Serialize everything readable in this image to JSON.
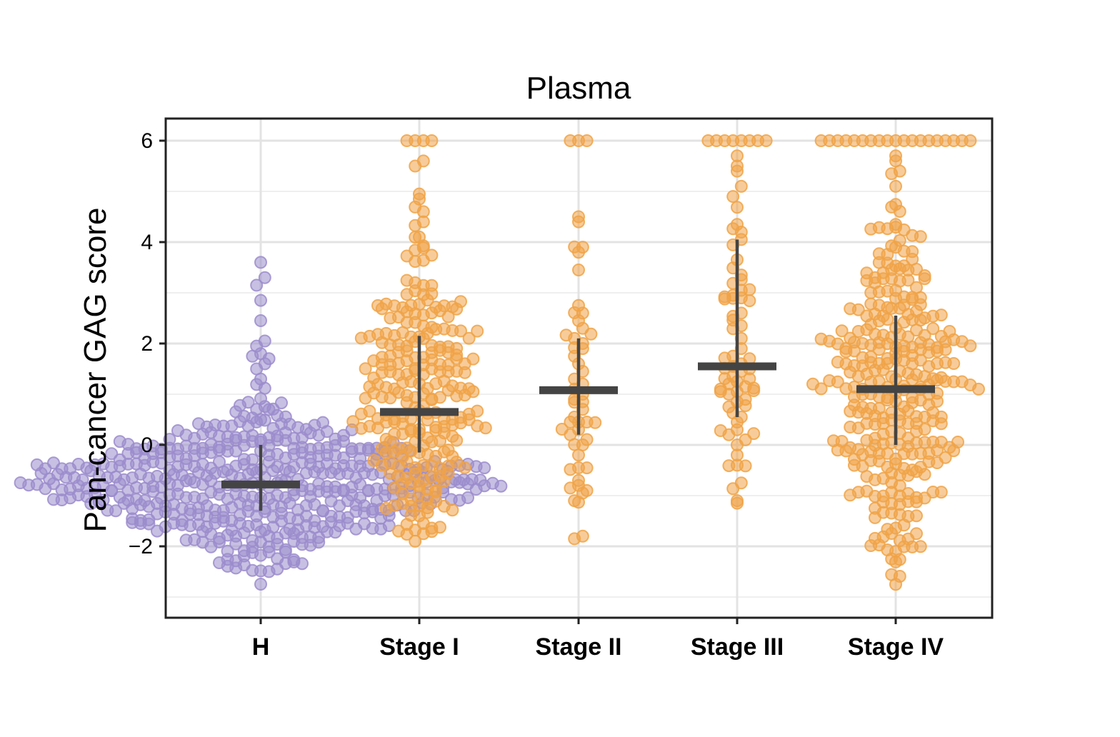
{
  "chart_data": {
    "type": "scatter",
    "subtype": "beeswarm",
    "title": "Plasma",
    "xlabel": "",
    "ylabel": "Pan-cancer GAG score",
    "ylim": [
      -3.4,
      6.5
    ],
    "yticks": [
      -2,
      0,
      2,
      4,
      6
    ],
    "ytick_labels": [
      "−2",
      "0",
      "2",
      "4",
      "6"
    ],
    "categories": [
      "H",
      "Stage I",
      "Stage II",
      "Stage III",
      "Stage IV"
    ],
    "colors": {
      "H": "#9b8ccc",
      "Stage": "#f0a347",
      "stat": "#444444"
    },
    "groups": [
      {
        "name": "H",
        "color": "#9b8ccc",
        "n": 520,
        "summary": {
          "median": -0.78,
          "lower": -1.3,
          "upper": 0.0,
          "min": -2.95,
          "max": 3.6
        },
        "values": [
          3.6,
          3.3,
          3.15,
          2.85,
          2.45,
          2.05,
          1.95,
          1.8,
          1.75,
          1.7,
          1.6,
          1.5,
          1.3
        ]
      },
      {
        "name": "Stage I",
        "color": "#f0a347",
        "n": 260,
        "summary": {
          "median": 0.65,
          "lower": -0.15,
          "upper": 2.15,
          "min": -1.9,
          "max": 6.0
        },
        "values": [
          6.0,
          6.0,
          6.0,
          6.0,
          5.6,
          5.5,
          4.95,
          4.85,
          4.6,
          4.4,
          -1.75,
          -1.9
        ]
      },
      {
        "name": "Stage II",
        "color": "#f0a347",
        "n": 55,
        "summary": {
          "median": 1.08,
          "lower": 0.2,
          "upper": 2.1,
          "min": -1.85,
          "max": 6.0
        },
        "values": [
          6.0,
          6.0,
          6.0,
          4.5,
          4.4,
          3.9,
          3.8,
          3.45,
          2.75,
          2.6,
          2.45,
          2.3,
          2.1,
          2.0,
          1.9,
          1.75,
          1.6,
          1.45,
          1.3,
          1.2,
          1.1,
          1.0,
          0.9,
          0.85,
          0.7,
          0.55,
          0.45,
          0.45,
          0.45,
          0.3,
          0.2,
          0.0,
          -0.2,
          -0.45,
          -0.7,
          -0.8,
          -0.85,
          -0.9,
          -0.95,
          -1.1,
          -1.8,
          -1.85
        ]
      },
      {
        "name": "Stage III",
        "color": "#f0a347",
        "n": 80,
        "summary": {
          "median": 1.55,
          "lower": 0.55,
          "upper": 4.05,
          "min": -1.15,
          "max": 6.0
        },
        "values": [
          6.0,
          6.0,
          6.0,
          6.0,
          6.0,
          6.0,
          6.0,
          6.0,
          5.7,
          5.5,
          5.4,
          5.1,
          4.9,
          4.35,
          4.05,
          3.35,
          3.05,
          2.95,
          2.9,
          2.6,
          2.35,
          2.1,
          1.9,
          1.75,
          1.7,
          1.6,
          1.55,
          1.5,
          1.45,
          1.35,
          1.25,
          1.2,
          1.15,
          1.1,
          1.05,
          1.0,
          0.9,
          0.85,
          0.75,
          0.55,
          0.45,
          0.3,
          0.2,
          0.1,
          0.0,
          -0.2,
          -0.4,
          -0.75,
          -1.1,
          -1.15
        ]
      },
      {
        "name": "Stage IV",
        "color": "#f0a347",
        "n": 340,
        "summary": {
          "median": 1.1,
          "lower": 0.0,
          "upper": 2.55,
          "min": -2.75,
          "max": 6.0
        },
        "values": [
          6.0,
          6.0,
          6.0,
          6.0,
          6.0,
          6.0,
          6.0,
          6.0,
          6.0,
          6.0,
          6.0,
          6.0,
          6.0,
          6.0,
          6.0,
          6.0,
          6.0,
          6.0,
          6.0,
          5.7,
          5.6,
          5.4,
          5.35,
          5.1,
          -2.1,
          -2.75
        ]
      }
    ]
  }
}
